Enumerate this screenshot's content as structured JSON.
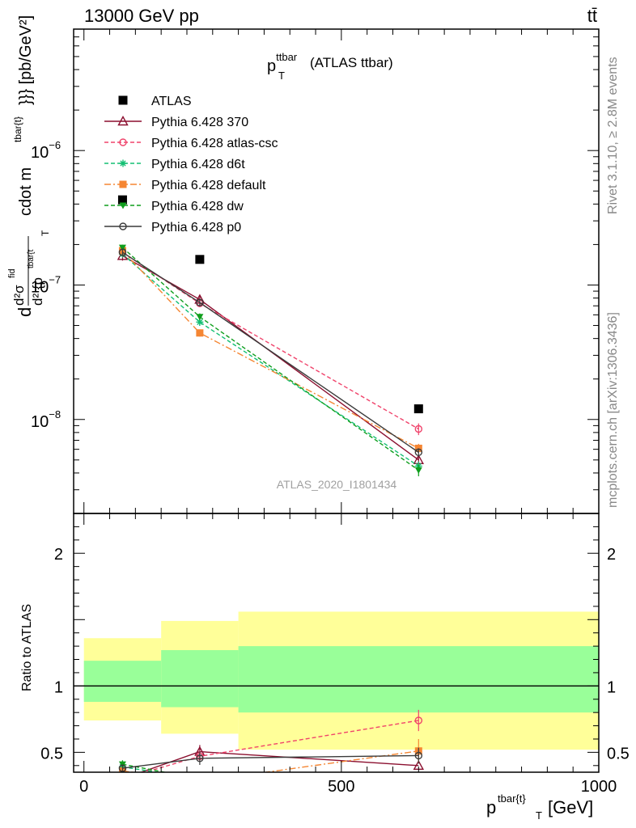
{
  "header": {
    "energy_label": "13000 GeV pp",
    "process_label": "tt̄"
  },
  "side_labels": {
    "rivet": "Rivet 3.1.10, ≥ 2.8M events",
    "mcplots": "mcplots.cern.ch [arXiv:1306.3436]"
  },
  "watermark": "ATLAS_2020_I1801434",
  "chart_data": [
    {
      "type": "scatter",
      "panel": "main",
      "title_main": "p",
      "title_sup": "ttbar",
      "title_sub": "T",
      "title_suffix": "(ATLAS ttbar)",
      "y_scale": "log",
      "ylim": [
        2e-09,
        8e-06
      ],
      "xlim": [
        -20,
        1000
      ],
      "ylabel_main": "d",
      "ylabel_parts": {
        "frac_top": "d²σ",
        "frac_top_sup": "fid",
        "frac_bot": "d² {p",
        "frac_bot_sub": "T",
        "frac_bot_sup": "tbar{t",
        "rest": "cdot m",
        "rest_sup": "tbar{t}",
        "tail": "}}} [pb/GeV²]"
      },
      "y_tick_labels": [
        {
          "value": 1e-08,
          "base": "10",
          "exp": "−8"
        },
        {
          "value": 1e-07,
          "base": "10",
          "exp": "−7"
        },
        {
          "value": 1e-06,
          "base": "10",
          "exp": "−6"
        }
      ],
      "legend_position": "top-left",
      "series": [
        {
          "name": "ATLAS",
          "color": "#000000",
          "marker": "square",
          "dash": "",
          "line": false,
          "x": [
            75,
            225,
            650
          ],
          "y": [
            4.3e-07,
            1.55e-07,
            1.2e-08
          ],
          "err": [
            0,
            0,
            0
          ]
        },
        {
          "name": "Pythia 6.428 370",
          "color": "#8b0f2f",
          "marker": "triangle-open",
          "dash": "",
          "line": true,
          "x": [
            75,
            225,
            650
          ],
          "y": [
            1.65e-07,
            7.8e-08,
            5e-09
          ],
          "err": [
            0.08,
            0.07,
            0.07
          ]
        },
        {
          "name": "Pythia 6.428 atlas-csc",
          "color": "#f0436b",
          "marker": "circle-open",
          "dash": "5,3",
          "line": true,
          "x": [
            75,
            225,
            650
          ],
          "y": [
            1.75e-07,
            7.3e-08,
            8.5e-09
          ],
          "err": [
            0.06,
            0.06,
            0.1
          ]
        },
        {
          "name": "Pythia 6.428 d6t",
          "color": "#13bf73",
          "marker": "asterisk",
          "dash": "5,3",
          "line": true,
          "x": [
            75,
            225,
            650
          ],
          "y": [
            1.7e-07,
            5.3e-08,
            4.5e-09
          ],
          "err": [
            0.05,
            0.06,
            0.08
          ]
        },
        {
          "name": "Pythia 6.428 default",
          "color": "#f58633",
          "marker": "square",
          "dash": "8,3,2,3",
          "line": true,
          "x": [
            75,
            225,
            650
          ],
          "y": [
            1.8e-07,
            4.4e-08,
            6.1e-09
          ],
          "err": [
            0.05,
            0.06,
            0.08
          ]
        },
        {
          "name": "Pythia 6.428 dw",
          "color": "#0f9e1c",
          "marker": "triangle-down",
          "dash": "5,3",
          "line": true,
          "x": [
            75,
            225,
            650
          ],
          "y": [
            1.9e-07,
            5.8e-08,
            4.2e-09
          ],
          "err": [
            0.05,
            0.06,
            0.1
          ]
        },
        {
          "name": "Pythia 6.428 p0",
          "color": "#3a3a3a",
          "marker": "circle-open",
          "dash": "",
          "line": true,
          "x": [
            75,
            225,
            650
          ],
          "y": [
            1.75e-07,
            7.4e-08,
            5.7e-09
          ],
          "err": [
            0.06,
            0.06,
            0.07
          ]
        }
      ]
    },
    {
      "type": "line",
      "panel": "ratio",
      "ylabel": "Ratio to ATLAS",
      "xlabel_main": "p",
      "xlabel_sup": "tbar{t}",
      "xlabel_sub": "T",
      "xlabel_tail": "[GeV]",
      "xlim": [
        -20,
        1000
      ],
      "ylim": [
        0.35,
        2.3
      ],
      "x_tick_labels": [
        "0",
        "500",
        "1000"
      ],
      "x_ticks": [
        0,
        500,
        1000
      ],
      "y_tick_labels": [
        "0.5",
        "1",
        "2"
      ],
      "y_ticks": [
        0.5,
        1,
        2
      ],
      "reference_line": 1,
      "bands": {
        "yellow_color": "#ffff99",
        "green_color": "#99ff99",
        "bins": [
          {
            "x0": 0,
            "x1": 150,
            "y_lo": 0.74,
            "y_hi": 1.36,
            "g_lo": 0.88,
            "g_hi": 1.19
          },
          {
            "x0": 150,
            "x1": 300,
            "y_lo": 0.64,
            "y_hi": 1.49,
            "g_lo": 0.84,
            "g_hi": 1.27
          },
          {
            "x0": 300,
            "x1": 1000,
            "y_lo": 0.52,
            "y_hi": 1.56,
            "g_lo": 0.8,
            "g_hi": 1.3
          }
        ]
      },
      "series": [
        {
          "name": "Pythia 6.428 370",
          "x": [
            75,
            225,
            650
          ],
          "y": [
            0.3,
            0.505,
            0.4
          ],
          "err": [
            0,
            0.05,
            0
          ]
        },
        {
          "name": "Pythia 6.428 atlas-csc",
          "x": [
            75,
            225,
            650
          ],
          "y": [
            0.3,
            0.47,
            0.74
          ],
          "err": [
            0,
            0.04,
            0.08
          ]
        },
        {
          "name": "Pythia 6.428 d6t",
          "x": [
            75,
            225,
            650
          ],
          "y": [
            0.39,
            0.3,
            0.3
          ],
          "err": [
            0.03,
            0,
            0
          ]
        },
        {
          "name": "Pythia 6.428 default",
          "x": [
            75,
            225,
            650
          ],
          "y": [
            0.36,
            0.28,
            0.51
          ],
          "err": [
            0,
            0,
            0.09
          ]
        },
        {
          "name": "Pythia 6.428 dw",
          "x": [
            75,
            225,
            650
          ],
          "y": [
            0.41,
            0.3,
            0.3
          ],
          "err": [
            0.03,
            0,
            0
          ]
        },
        {
          "name": "Pythia 6.428 p0",
          "x": [
            75,
            225,
            650
          ],
          "y": [
            0.38,
            0.455,
            0.475
          ],
          "err": [
            0.02,
            0.05,
            0.06
          ]
        }
      ]
    }
  ]
}
